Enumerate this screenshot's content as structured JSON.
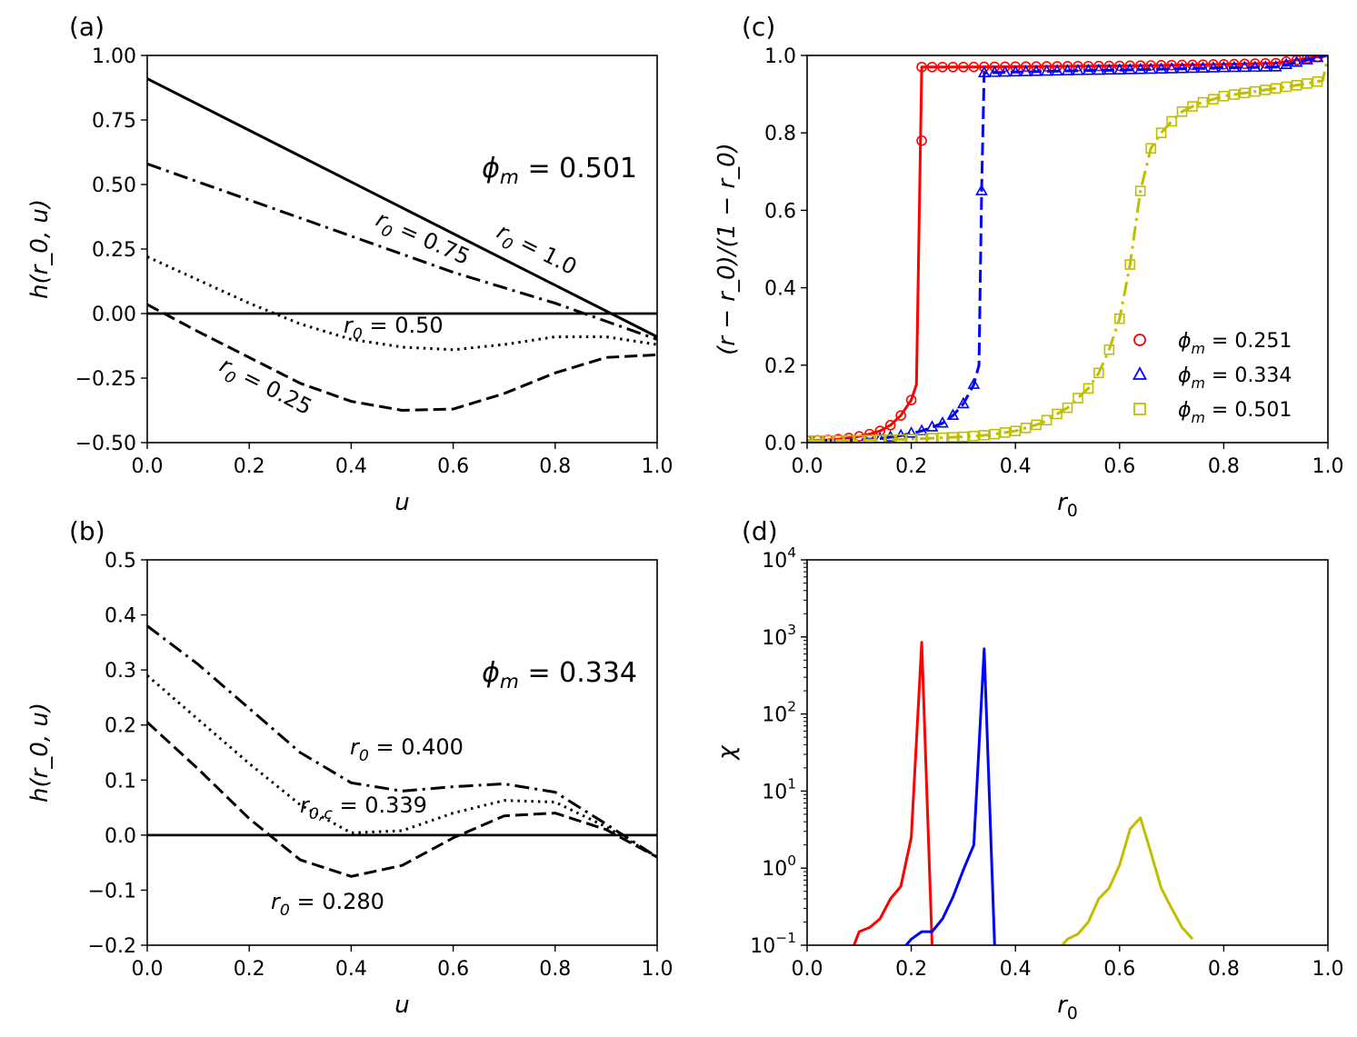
{
  "chart_data": [
    {
      "type": "line",
      "panel_label": "(a)",
      "annotation": "ϕ_m = 0.501",
      "xlabel": "u",
      "ylabel": "h(r_0, u)",
      "xlim": [
        0,
        1
      ],
      "ylim": [
        -0.5,
        1.0
      ],
      "xticks": [
        "0.0",
        "0.2",
        "0.4",
        "0.6",
        "0.8",
        "1.0"
      ],
      "yticks": [
        "−0.50",
        "−0.25",
        "0.00",
        "0.25",
        "0.50",
        "0.75",
        "1.00"
      ],
      "hline": 0,
      "series": [
        {
          "name": "r_0 = 1.0",
          "style": "solid",
          "x": [
            0,
            0.2,
            0.4,
            0.6,
            0.8,
            1.0
          ],
          "y": [
            0.91,
            0.71,
            0.51,
            0.31,
            0.11,
            -0.09
          ]
        },
        {
          "name": "r_0 = 0.75",
          "style": "dashdot",
          "x": [
            0,
            0.1,
            0.2,
            0.3,
            0.4,
            0.5,
            0.6,
            0.7,
            0.8,
            0.9,
            1.0
          ],
          "y": [
            0.58,
            0.51,
            0.44,
            0.37,
            0.3,
            0.23,
            0.16,
            0.1,
            0.04,
            -0.03,
            -0.1
          ]
        },
        {
          "name": "r_0 = 0.50",
          "style": "dotted",
          "x": [
            0,
            0.1,
            0.2,
            0.3,
            0.4,
            0.5,
            0.6,
            0.7,
            0.8,
            0.9,
            1.0
          ],
          "y": [
            0.22,
            0.13,
            0.04,
            -0.04,
            -0.1,
            -0.13,
            -0.14,
            -0.12,
            -0.09,
            -0.09,
            -0.12
          ]
        },
        {
          "name": "r_0 = 0.25",
          "style": "dashed",
          "x": [
            0,
            0.1,
            0.2,
            0.3,
            0.4,
            0.5,
            0.6,
            0.7,
            0.8,
            0.9,
            1.0
          ],
          "y": [
            0.035,
            -0.07,
            -0.17,
            -0.27,
            -0.34,
            -0.375,
            -0.37,
            -0.31,
            -0.23,
            -0.17,
            -0.16
          ]
        }
      ],
      "labels": [
        "r_0 = 1.0",
        "r_0 = 0.75",
        "r_0 = 0.50",
        "r_0 = 0.25"
      ]
    },
    {
      "type": "line",
      "panel_label": "(b)",
      "annotation": "ϕ_m = 0.334",
      "xlabel": "u",
      "ylabel": "h(r_0, u)",
      "xlim": [
        0,
        1
      ],
      "ylim": [
        -0.2,
        0.5
      ],
      "xticks": [
        "0.0",
        "0.2",
        "0.4",
        "0.6",
        "0.8",
        "1.0"
      ],
      "yticks": [
        "−0.2",
        "−0.1",
        "0.0",
        "0.1",
        "0.2",
        "0.3",
        "0.4",
        "0.5"
      ],
      "hline": 0,
      "series": [
        {
          "name": "r_0 = 0.400",
          "style": "dashdot",
          "x": [
            0,
            0.1,
            0.2,
            0.3,
            0.4,
            0.5,
            0.6,
            0.7,
            0.8,
            0.9,
            1.0
          ],
          "y": [
            0.38,
            0.31,
            0.23,
            0.15,
            0.095,
            0.08,
            0.088,
            0.093,
            0.078,
            0.02,
            -0.04
          ]
        },
        {
          "name": "r_0,c = 0.339",
          "style": "dotted",
          "x": [
            0,
            0.1,
            0.2,
            0.3,
            0.4,
            0.5,
            0.6,
            0.7,
            0.8,
            0.9,
            1.0
          ],
          "y": [
            0.29,
            0.21,
            0.13,
            0.055,
            0.004,
            0.008,
            0.04,
            0.063,
            0.06,
            0.015,
            -0.04
          ]
        },
        {
          "name": "r_0 = 0.280",
          "style": "dashed",
          "x": [
            0,
            0.1,
            0.2,
            0.3,
            0.4,
            0.5,
            0.6,
            0.7,
            0.8,
            0.9,
            1.0
          ],
          "y": [
            0.205,
            0.12,
            0.03,
            -0.045,
            -0.075,
            -0.055,
            -0.005,
            0.035,
            0.04,
            0.01,
            -0.04
          ]
        }
      ],
      "labels": [
        "r_0 = 0.400",
        "r_0,c = 0.339",
        "r_0 = 0.280"
      ]
    },
    {
      "type": "line",
      "panel_label": "(c)",
      "xlabel": "r_0",
      "ylabel": "(r − r_0)/(1 − r_0)",
      "xlim": [
        0,
        1
      ],
      "ylim": [
        0,
        1
      ],
      "xticks": [
        "0.0",
        "0.2",
        "0.4",
        "0.6",
        "0.8",
        "1.0"
      ],
      "yticks": [
        "0.0",
        "0.2",
        "0.4",
        "0.6",
        "0.8",
        "1.0"
      ],
      "legend_position": "lower-right",
      "series": [
        {
          "name": "ϕ_m = 0.251",
          "color": "#ff0000",
          "style": "solid",
          "marker": "circle",
          "x": [
            0,
            0.02,
            0.04,
            0.06,
            0.08,
            0.1,
            0.12,
            0.14,
            0.16,
            0.18,
            0.2,
            0.21,
            0.22,
            0.24,
            0.26,
            0.3,
            0.4,
            0.5,
            0.6,
            0.7,
            0.8,
            0.9,
            1.0
          ],
          "y": [
            0.005,
            0.006,
            0.007,
            0.009,
            0.012,
            0.016,
            0.022,
            0.03,
            0.045,
            0.07,
            0.11,
            0.15,
            0.97,
            0.97,
            0.97,
            0.97,
            0.971,
            0.972,
            0.973,
            0.975,
            0.977,
            0.98,
            1.0
          ],
          "markers_x": [
            0,
            0.02,
            0.04,
            0.06,
            0.08,
            0.1,
            0.12,
            0.14,
            0.16,
            0.18,
            0.2,
            0.22,
            0.24,
            0.26,
            0.28,
            0.3,
            0.32,
            0.34,
            0.36,
            0.38,
            0.4,
            0.42,
            0.44,
            0.46,
            0.48,
            0.5,
            0.52,
            0.54,
            0.56,
            0.58,
            0.6,
            0.62,
            0.64,
            0.66,
            0.68,
            0.7,
            0.72,
            0.74,
            0.76,
            0.78,
            0.8,
            0.82,
            0.84,
            0.86,
            0.88,
            0.9,
            0.92,
            0.94,
            0.96,
            0.98
          ],
          "marker_extra": {
            "x": 0.22,
            "y": 0.78
          }
        },
        {
          "name": "ϕ_m = 0.334",
          "color": "#0000ff",
          "style": "dashed",
          "marker": "triangle",
          "x": [
            0,
            0.1,
            0.14,
            0.18,
            0.22,
            0.26,
            0.28,
            0.3,
            0.32,
            0.33,
            0.335,
            0.34,
            0.4,
            0.5,
            0.6,
            0.7,
            0.8,
            0.9,
            1.0
          ],
          "y": [
            0.005,
            0.007,
            0.01,
            0.018,
            0.03,
            0.05,
            0.07,
            0.1,
            0.15,
            0.2,
            0.65,
            0.955,
            0.957,
            0.96,
            0.962,
            0.965,
            0.968,
            0.97,
            1.0
          ],
          "markers_x": [
            0.14,
            0.16,
            0.18,
            0.2,
            0.22,
            0.24,
            0.26,
            0.28,
            0.3,
            0.32,
            0.34,
            0.36,
            0.38,
            0.4,
            0.42,
            0.44,
            0.46,
            0.48,
            0.5,
            0.52,
            0.54,
            0.56,
            0.58,
            0.6,
            0.62,
            0.64,
            0.66,
            0.68,
            0.7,
            0.72,
            0.74,
            0.76,
            0.78,
            0.8,
            0.82,
            0.84,
            0.86,
            0.88,
            0.9,
            0.92,
            0.94,
            0.96,
            0.98
          ],
          "marker_extra": {
            "x": 0.335,
            "y": 0.65
          }
        },
        {
          "name": "ϕ_m = 0.501",
          "color": "#bfbf00",
          "style": "dashdot",
          "marker": "square",
          "x": [
            0,
            0.1,
            0.2,
            0.3,
            0.35,
            0.4,
            0.45,
            0.5,
            0.54,
            0.56,
            0.58,
            0.6,
            0.62,
            0.64,
            0.66,
            0.68,
            0.7,
            0.72,
            0.75,
            0.8,
            0.85,
            0.9,
            0.95,
            0.99,
            1.0
          ],
          "y": [
            0.005,
            0.006,
            0.009,
            0.015,
            0.02,
            0.03,
            0.05,
            0.09,
            0.14,
            0.18,
            0.24,
            0.32,
            0.46,
            0.65,
            0.76,
            0.8,
            0.83,
            0.855,
            0.875,
            0.895,
            0.905,
            0.915,
            0.925,
            0.935,
            1.0
          ],
          "markers_x": [
            0,
            0.02,
            0.04,
            0.06,
            0.08,
            0.1,
            0.12,
            0.14,
            0.16,
            0.18,
            0.2,
            0.22,
            0.24,
            0.26,
            0.28,
            0.3,
            0.32,
            0.34,
            0.36,
            0.38,
            0.4,
            0.42,
            0.44,
            0.46,
            0.48,
            0.5,
            0.52,
            0.54,
            0.56,
            0.58,
            0.6,
            0.62,
            0.64,
            0.66,
            0.68,
            0.7,
            0.72,
            0.74,
            0.76,
            0.78,
            0.8,
            0.82,
            0.84,
            0.86,
            0.88,
            0.9,
            0.92,
            0.94,
            0.96,
            0.98
          ]
        }
      ]
    },
    {
      "type": "line",
      "panel_label": "(d)",
      "xlabel": "r_0",
      "ylabel": "χ",
      "xlim": [
        0,
        1
      ],
      "ylim": [
        0.1,
        10000
      ],
      "yscale": "log",
      "xticks": [
        "0.0",
        "0.2",
        "0.4",
        "0.6",
        "0.8",
        "1.0"
      ],
      "yticks": [
        "10^-1",
        "10^0",
        "10^1",
        "10^2",
        "10^3",
        "10^4"
      ],
      "series": [
        {
          "color": "#ff0000",
          "x": [
            0.09,
            0.1,
            0.12,
            0.14,
            0.16,
            0.18,
            0.2,
            0.22,
            0.24
          ],
          "y": [
            0.1,
            0.15,
            0.17,
            0.22,
            0.4,
            0.58,
            2.5,
            850,
            0.1
          ]
        },
        {
          "color": "#0000ff",
          "x": [
            0.19,
            0.2,
            0.22,
            0.24,
            0.26,
            0.28,
            0.3,
            0.32,
            0.34,
            0.36
          ],
          "y": [
            0.1,
            0.12,
            0.15,
            0.15,
            0.22,
            0.42,
            0.95,
            2.0,
            700,
            0.1
          ]
        },
        {
          "color": "#bfbf00",
          "x": [
            0.49,
            0.5,
            0.52,
            0.54,
            0.56,
            0.58,
            0.6,
            0.62,
            0.64,
            0.66,
            0.68,
            0.7,
            0.72,
            0.74
          ],
          "y": [
            0.1,
            0.12,
            0.14,
            0.2,
            0.4,
            0.55,
            1.1,
            3.2,
            4.5,
            1.6,
            0.55,
            0.3,
            0.17,
            0.12
          ]
        }
      ]
    }
  ]
}
